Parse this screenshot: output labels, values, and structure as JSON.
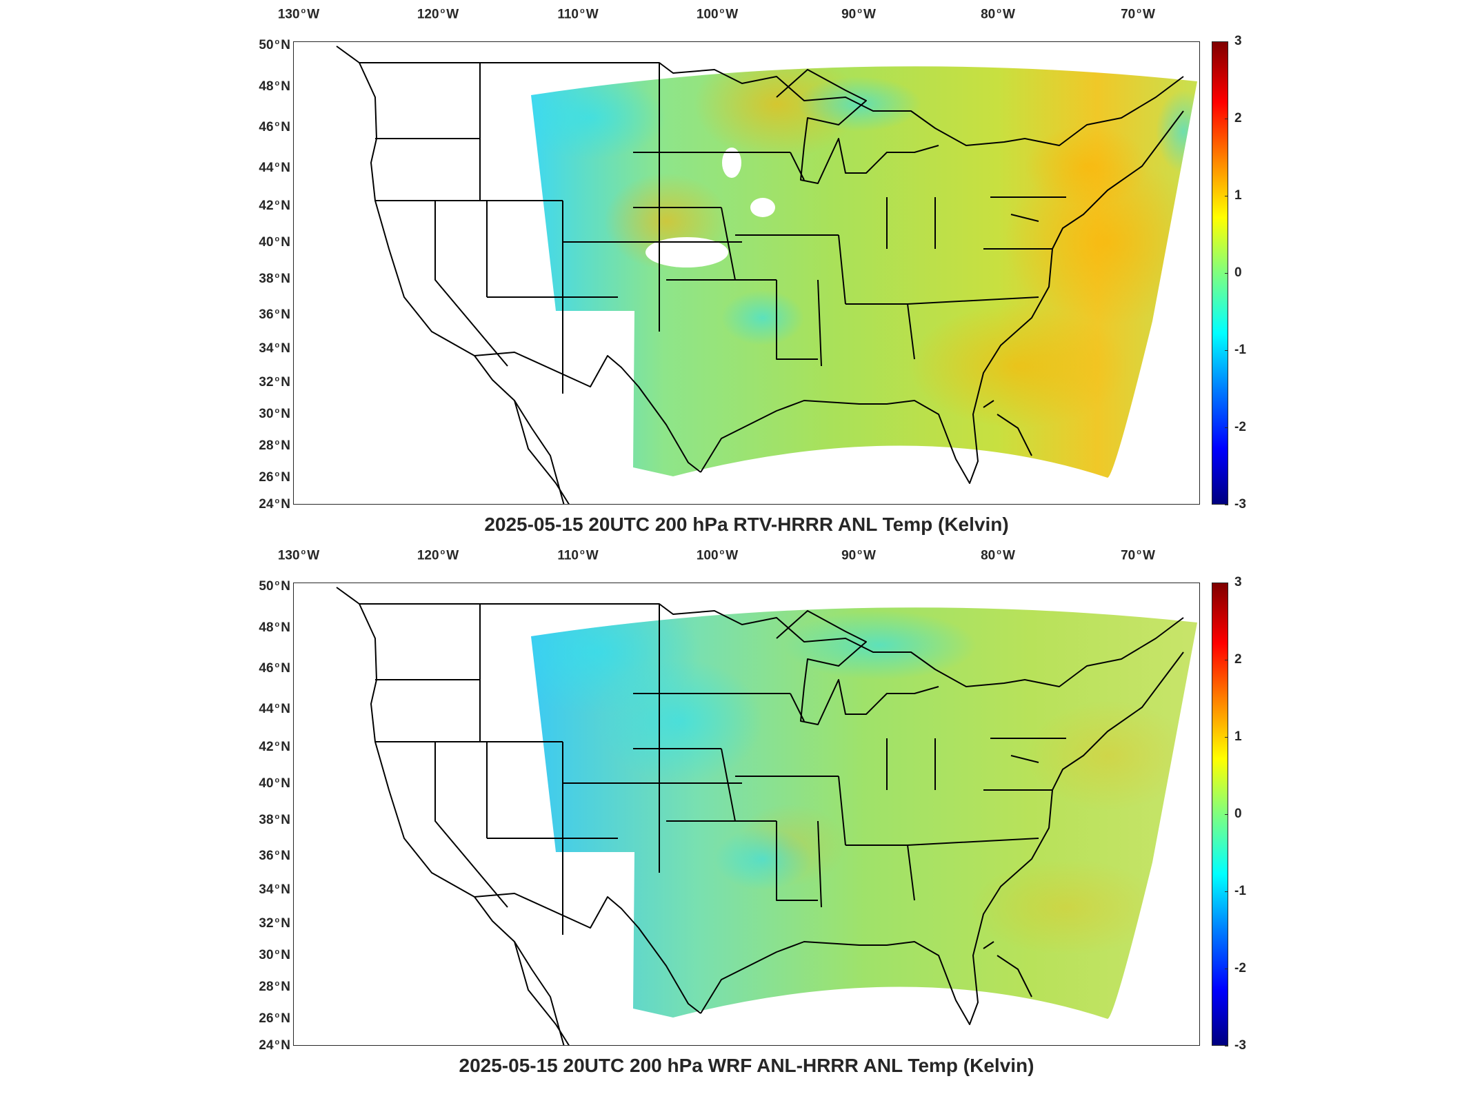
{
  "figure": {
    "lon_ticks": [
      "130",
      "120",
      "110",
      "100",
      "90",
      "80",
      "70"
    ],
    "lon_suffix": "W",
    "lat_ticks": [
      "50",
      "48",
      "46",
      "44",
      "42",
      "40",
      "38",
      "36",
      "34",
      "32",
      "30",
      "28",
      "26",
      "24"
    ],
    "lat_suffix": "N",
    "colorbar_ticks": [
      "3",
      "2",
      "1",
      "0",
      "-1",
      "-2",
      "-3"
    ],
    "colormap": "jet",
    "colors": {
      "map_outline": "#000000",
      "data_field_dominant": "#a8e060",
      "warm_anomaly": "#ffb000",
      "cool_anomaly": "#30e0f0"
    }
  },
  "panels": [
    {
      "title": "2025-05-15 20UTC 200 hPa RTV-HRRR ANL Temp (Kelvin)"
    },
    {
      "title": "2025-05-15 20UTC 200 hPa WRF ANL-HRRR ANL Temp (Kelvin)"
    }
  ],
  "chart_data": [
    {
      "type": "heatmap",
      "title": "2025-05-15 20UTC 200 hPa RTV-HRRR ANL Temp (Kelvin)",
      "xlabel": "",
      "ylabel": "",
      "lon_range": [
        -130,
        -63
      ],
      "lat_range": [
        24,
        50
      ],
      "colorbar_range": [
        -3,
        3
      ],
      "colorbar_ticks": [
        -3,
        -2,
        -1,
        0,
        1,
        2,
        3
      ],
      "colormap": "jet",
      "grid": false
    },
    {
      "type": "heatmap",
      "title": "2025-05-15 20UTC 200 hPa WRF ANL-HRRR ANL Temp (Kelvin)",
      "xlabel": "",
      "ylabel": "",
      "lon_range": [
        -130,
        -63
      ],
      "lat_range": [
        24,
        50
      ],
      "colorbar_range": [
        -3,
        3
      ],
      "colorbar_ticks": [
        -3,
        -2,
        -1,
        0,
        1,
        2,
        3
      ],
      "colormap": "jet",
      "grid": false
    }
  ]
}
